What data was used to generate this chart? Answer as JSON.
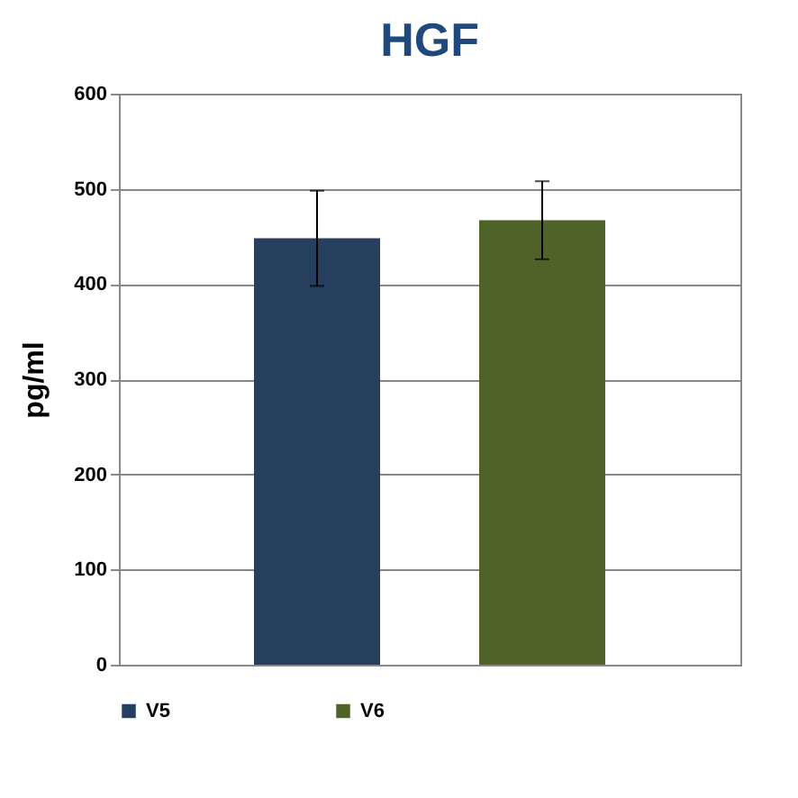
{
  "chart_data": {
    "type": "bar",
    "title": "HGF",
    "ylabel": "pg/ml",
    "categories": [
      null,
      null
    ],
    "series": [
      {
        "name": "V5",
        "color": "#263f5e",
        "values": [
          448,
          null
        ],
        "errors": [
          50,
          null
        ]
      },
      {
        "name": "V6",
        "color": "#4f6228",
        "values": [
          null,
          467
        ],
        "errors": [
          null,
          41
        ]
      }
    ],
    "ylim": [
      0,
      600
    ],
    "yticks": [
      0,
      100,
      200,
      300,
      400,
      500,
      600
    ],
    "grid": "y",
    "legend": "bottom"
  }
}
